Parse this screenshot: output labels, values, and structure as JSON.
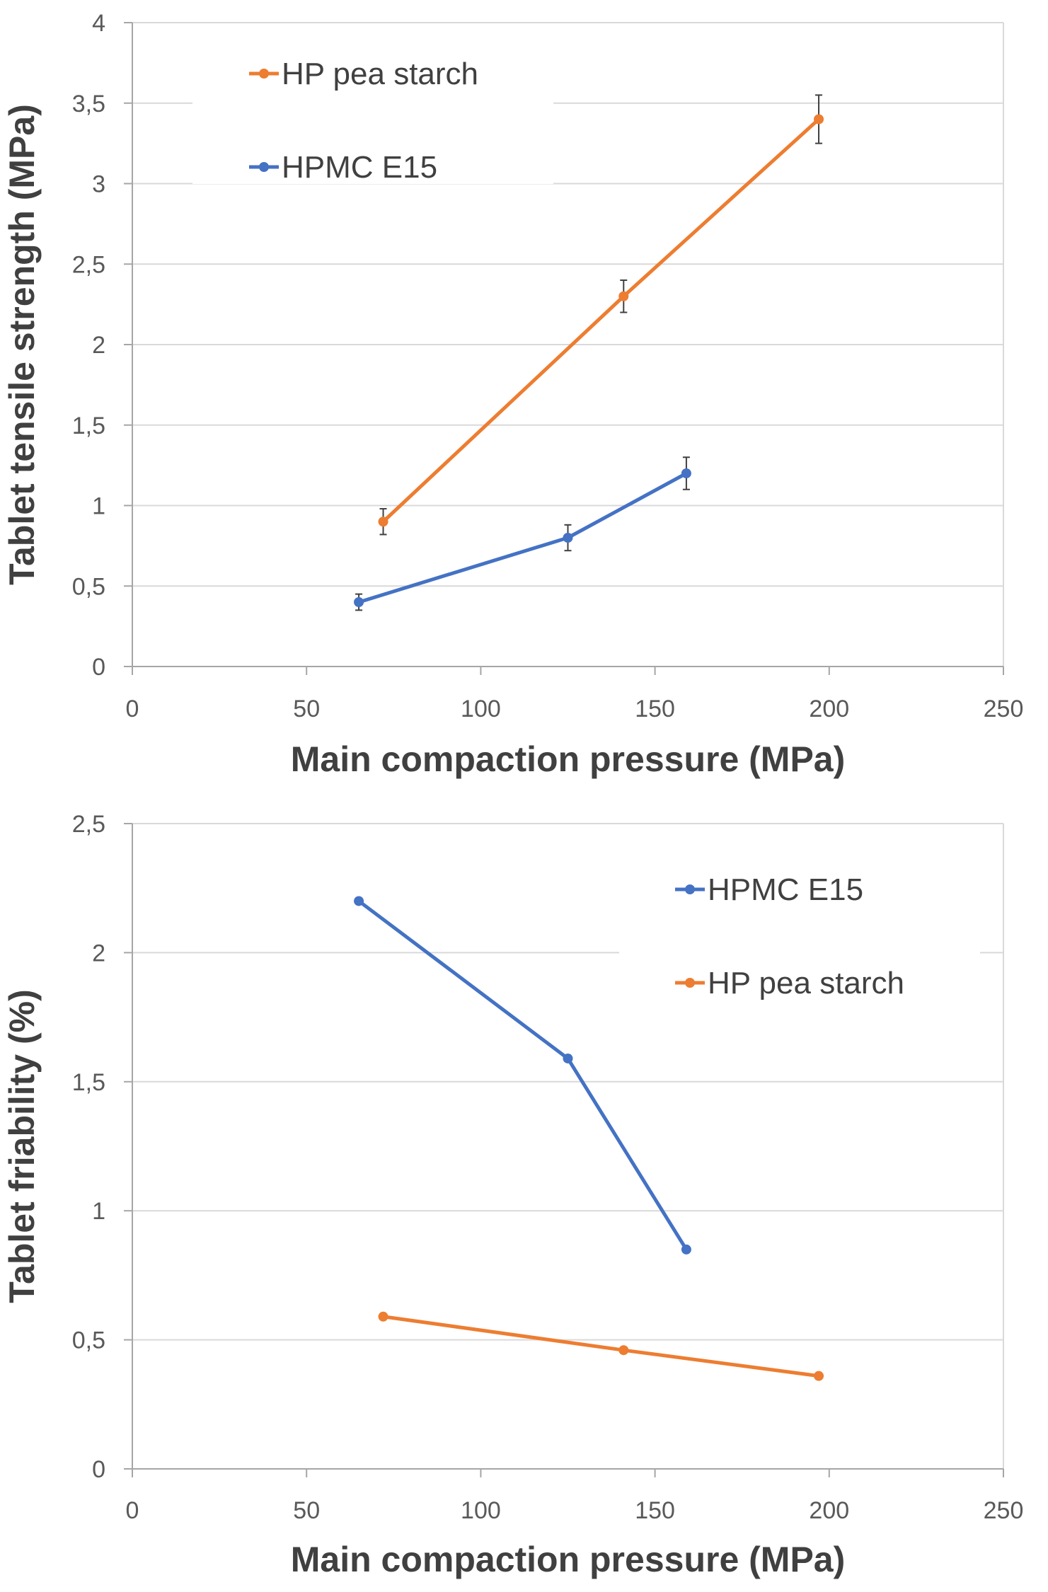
{
  "chart_data": [
    {
      "type": "line",
      "title": "",
      "xlabel": "Main compaction pressure (MPa)",
      "ylabel": "Tablet tensile strength (MPa)",
      "xlim": [
        0,
        250
      ],
      "ylim": [
        0,
        4
      ],
      "x_ticks": [
        "0",
        "50",
        "100",
        "150",
        "200",
        "250"
      ],
      "y_ticks": [
        "0",
        "0,5",
        "1",
        "1,5",
        "2",
        "2,5",
        "3",
        "3,5",
        "4"
      ],
      "grid": "horizontal",
      "legend_position": "top-left",
      "error_bars": true,
      "series": [
        {
          "name": "HP pea starch",
          "color": "#ED7D31",
          "points": [
            {
              "x": 72,
              "y": 0.9,
              "err": 0.08
            },
            {
              "x": 141,
              "y": 2.3,
              "err": 0.1
            },
            {
              "x": 197,
              "y": 3.4,
              "err": 0.15
            }
          ]
        },
        {
          "name": "HPMC E15",
          "color": "#4472C4",
          "points": [
            {
              "x": 65,
              "y": 0.4,
              "err": 0.05
            },
            {
              "x": 125,
              "y": 0.8,
              "err": 0.08
            },
            {
              "x": 159,
              "y": 1.2,
              "err": 0.1
            }
          ]
        }
      ]
    },
    {
      "type": "line",
      "title": "",
      "xlabel": "Main compaction pressure (MPa)",
      "ylabel": "Tablet friability (%)",
      "xlim": [
        0,
        250
      ],
      "ylim": [
        0,
        2.5
      ],
      "x_ticks": [
        "0",
        "50",
        "100",
        "150",
        "200",
        "250"
      ],
      "y_ticks": [
        "0",
        "0,5",
        "1",
        "1,5",
        "2",
        "2,5"
      ],
      "grid": "horizontal",
      "legend_position": "top-right",
      "error_bars": false,
      "series": [
        {
          "name": "HPMC E15",
          "color": "#4472C4",
          "points": [
            {
              "x": 65,
              "y": 2.2
            },
            {
              "x": 125,
              "y": 1.59
            },
            {
              "x": 159,
              "y": 0.85
            }
          ]
        },
        {
          "name": "HP pea starch",
          "color": "#ED7D31",
          "points": [
            {
              "x": 72,
              "y": 0.59
            },
            {
              "x": 141,
              "y": 0.46
            },
            {
              "x": 197,
              "y": 0.36
            }
          ]
        }
      ]
    }
  ]
}
